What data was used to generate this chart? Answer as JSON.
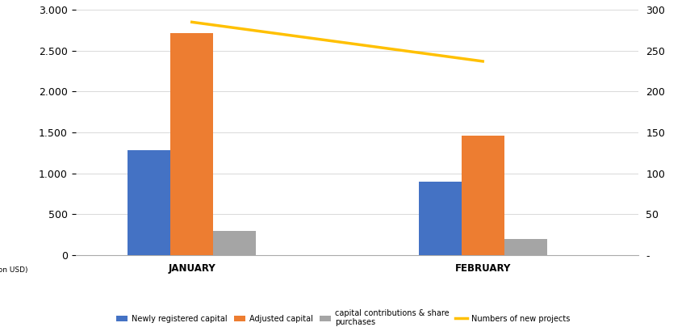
{
  "categories": [
    "JANUARY",
    "FEBRUARY"
  ],
  "newly_registered": [
    1280,
    900
  ],
  "adjusted_capital": [
    2720,
    1460
  ],
  "capital_contributions": [
    300,
    195
  ],
  "new_projects": [
    285,
    237
  ],
  "bar_colors": {
    "newly_registered": "#4472C4",
    "adjusted_capital": "#ED7D31",
    "capital_contributions": "#A5A5A5"
  },
  "line_color": "#FFC000",
  "ylim_left": [
    0,
    3000
  ],
  "ylim_right": [
    0,
    300
  ],
  "left_ticks": [
    0,
    500,
    1000,
    1500,
    2000,
    2500,
    3000
  ],
  "right_ticks": [
    0,
    50,
    100,
    150,
    200,
    250,
    300
  ],
  "ylabel_left": "(million USD)",
  "legend_labels": [
    "Newly registered capital",
    "Adjusted capital",
    "capital contributions & share\npurchases",
    "Numbers of new projects"
  ],
  "background_color": "#FFFFFF",
  "grid_color": "#D9D9D9",
  "bar_width": 0.22,
  "group_positions": [
    1.0,
    2.5
  ],
  "figsize": [
    8.5,
    4.05
  ],
  "dpi": 100
}
